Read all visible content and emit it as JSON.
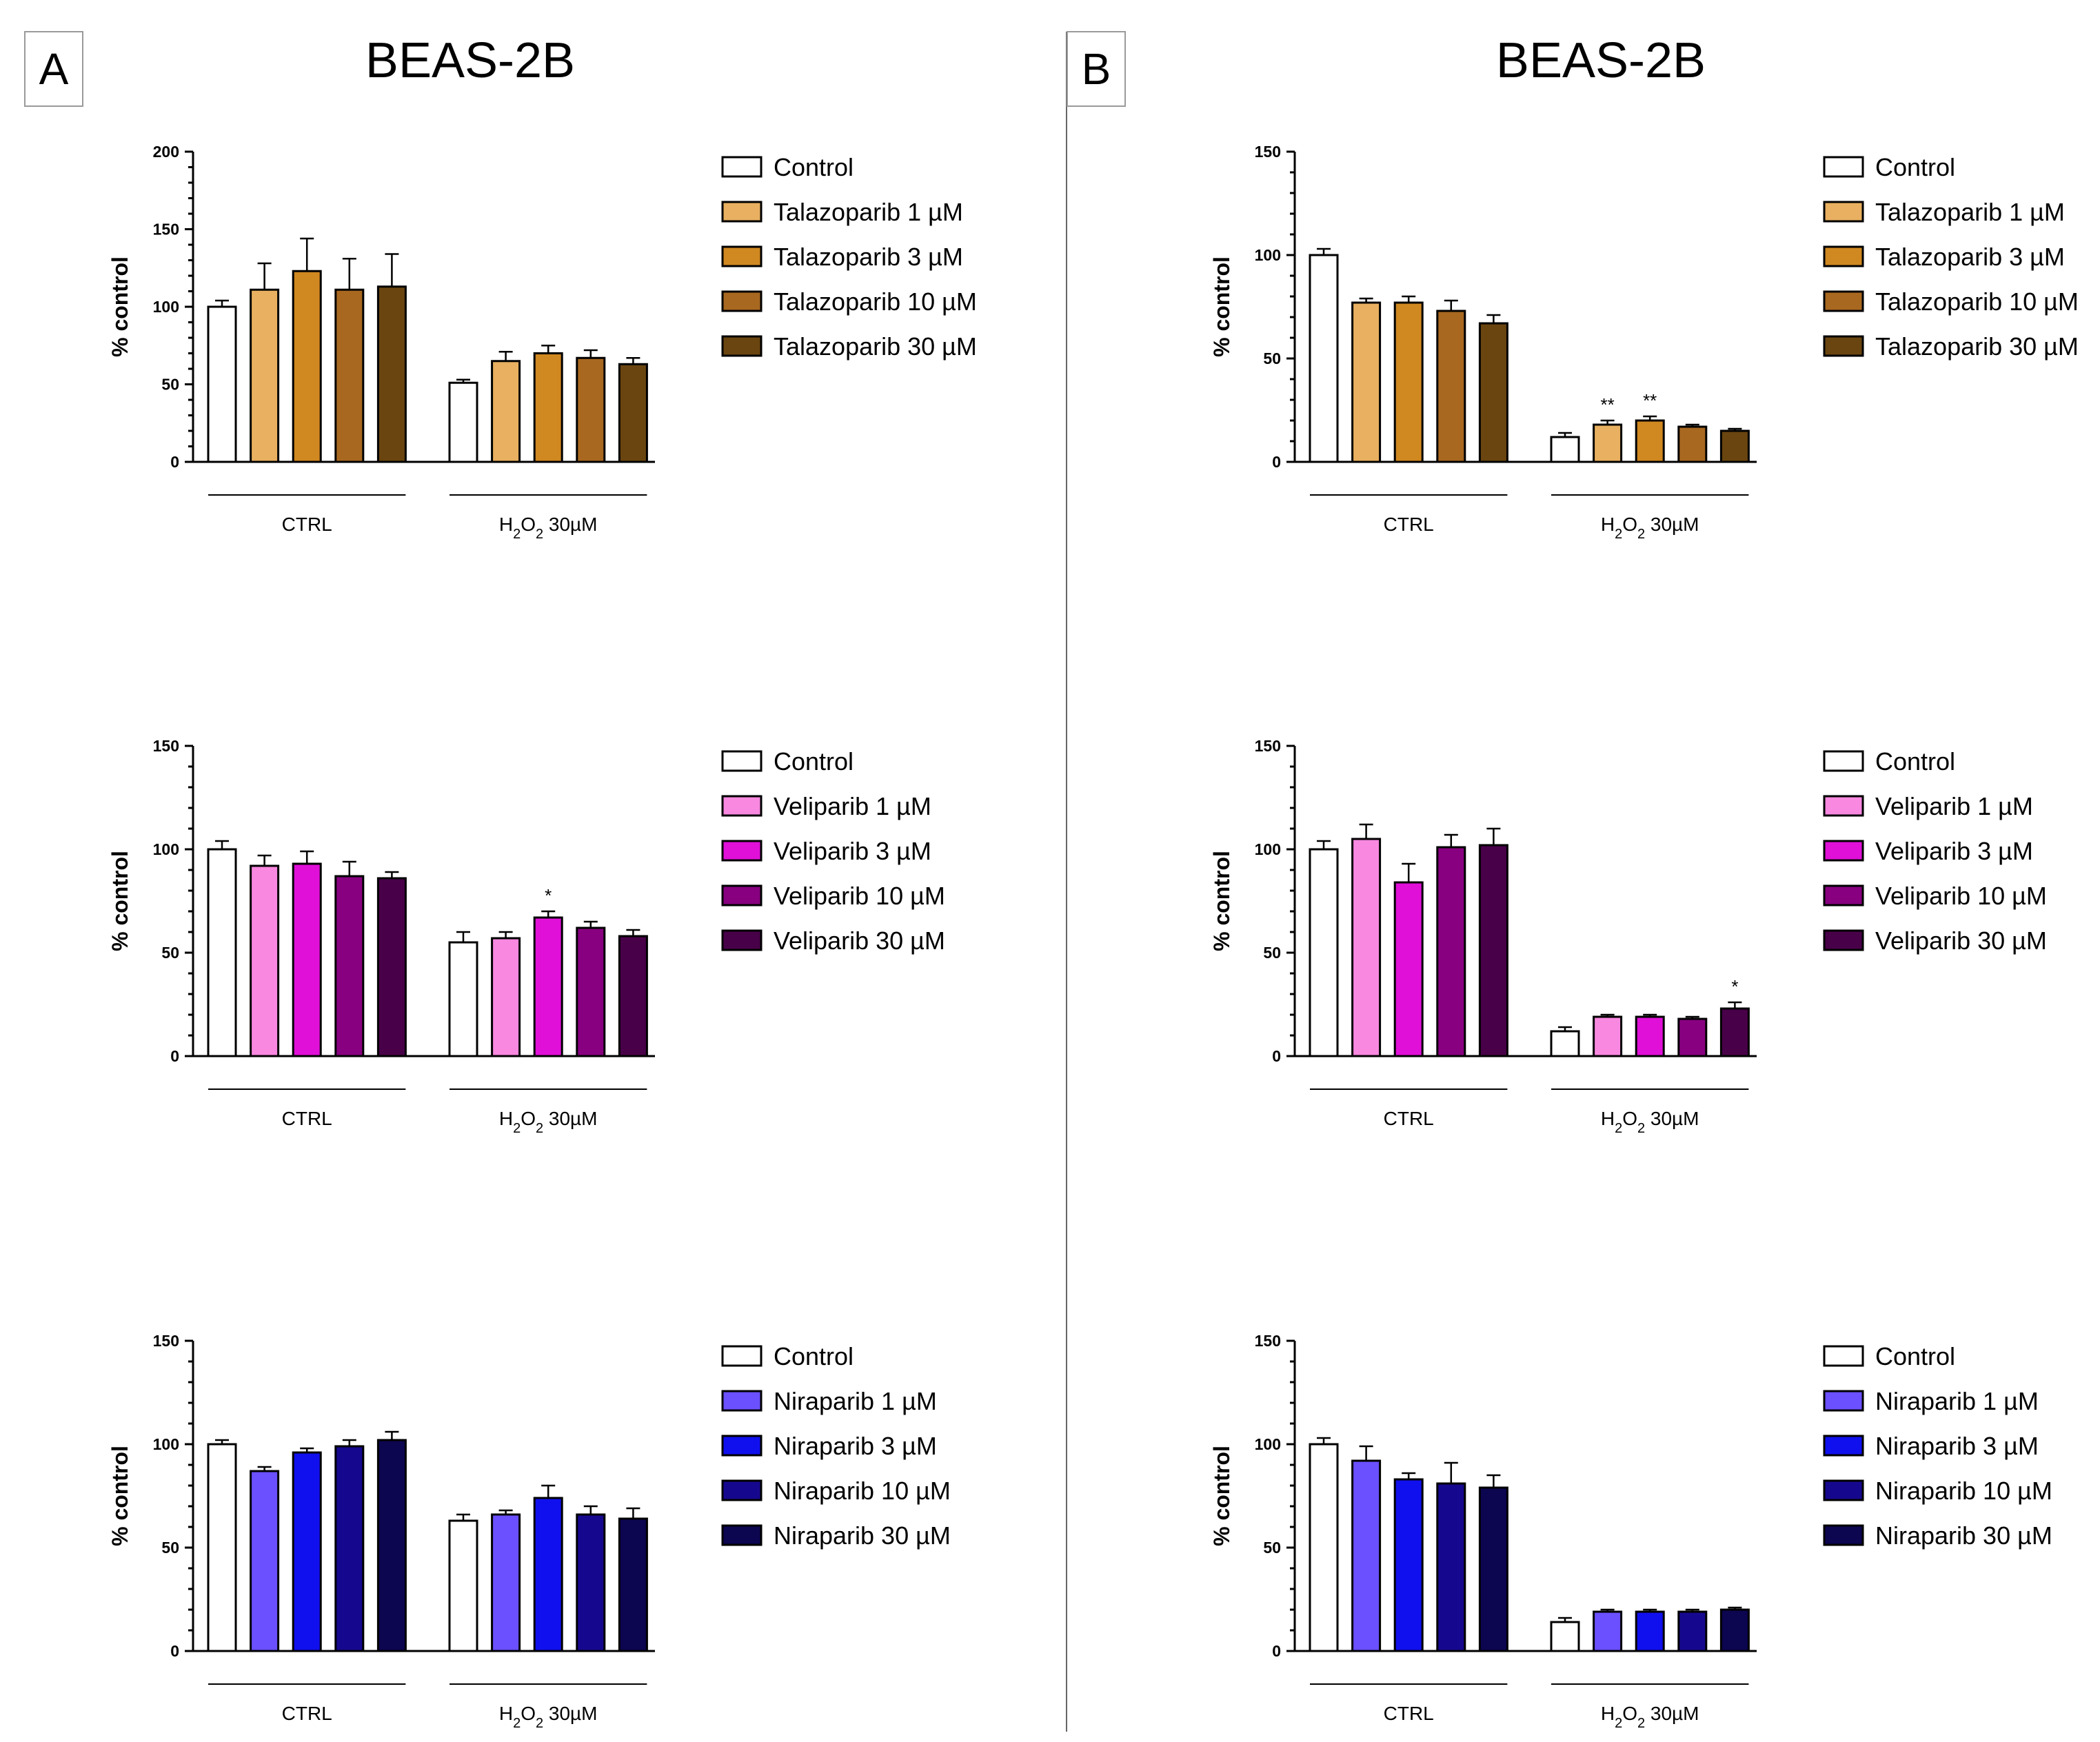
{
  "panels": [
    {
      "letter": "A",
      "title": "BEAS-2B"
    },
    {
      "letter": "B",
      "title": "BEAS-2B"
    }
  ],
  "chart_data": [
    {
      "type": "bar",
      "panel": "A",
      "row": 1,
      "ylabel": "% control",
      "ylim": [
        0,
        200
      ],
      "yticks": [
        0,
        50,
        100,
        150,
        200
      ],
      "groups": [
        "CTRL",
        "H2O2 30µM"
      ],
      "series": [
        {
          "name": "Control",
          "color": "#ffffff",
          "values": [
            100,
            51
          ],
          "errors": [
            4,
            2
          ]
        },
        {
          "name": "Talazoparib 1 µM",
          "color": "#e8b060",
          "values": [
            111,
            65
          ],
          "errors": [
            17,
            6
          ]
        },
        {
          "name": "Talazoparib 3 µM",
          "color": "#d08820",
          "values": [
            123,
            70
          ],
          "errors": [
            21,
            5
          ]
        },
        {
          "name": "Talazoparib 10 µM",
          "color": "#a86820",
          "values": [
            111,
            67
          ],
          "errors": [
            20,
            5
          ]
        },
        {
          "name": "Talazoparib 30 µM",
          "color": "#6a4510",
          "values": [
            113,
            63
          ],
          "errors": [
            21,
            4
          ]
        }
      ],
      "significance": []
    },
    {
      "type": "bar",
      "panel": "A",
      "row": 2,
      "ylabel": "% control",
      "ylim": [
        0,
        150
      ],
      "yticks": [
        0,
        50,
        100,
        150
      ],
      "groups": [
        "CTRL",
        "H2O2 30µM"
      ],
      "series": [
        {
          "name": "Control",
          "color": "#ffffff",
          "values": [
            100,
            55
          ],
          "errors": [
            4,
            5
          ]
        },
        {
          "name": "Veliparib  1 µM",
          "color": "#f888e0",
          "values": [
            92,
            57
          ],
          "errors": [
            5,
            3
          ]
        },
        {
          "name": "Veliparib  3 µM",
          "color": "#e010d8",
          "values": [
            93,
            67
          ],
          "errors": [
            6,
            3
          ]
        },
        {
          "name": "Veliparib  10 µM",
          "color": "#880080",
          "values": [
            87,
            62
          ],
          "errors": [
            7,
            3
          ]
        },
        {
          "name": "Veliparib  30 µM",
          "color": "#480048",
          "values": [
            86,
            58
          ],
          "errors": [
            3,
            3
          ]
        }
      ],
      "significance": [
        {
          "series": 2,
          "group": 1,
          "label": "*"
        }
      ]
    },
    {
      "type": "bar",
      "panel": "A",
      "row": 3,
      "ylabel": "% control",
      "ylim": [
        0,
        150
      ],
      "yticks": [
        0,
        50,
        100,
        150
      ],
      "groups": [
        "CTRL",
        "H2O2 30µM"
      ],
      "series": [
        {
          "name": "Control",
          "color": "#ffffff",
          "values": [
            100,
            63
          ],
          "errors": [
            2,
            3
          ]
        },
        {
          "name": "Niraparib 1 µM",
          "color": "#6a50ff",
          "values": [
            87,
            66
          ],
          "errors": [
            2,
            2
          ]
        },
        {
          "name": "Niraparib 3 µM",
          "color": "#1010ee",
          "values": [
            96,
            74
          ],
          "errors": [
            2,
            6
          ]
        },
        {
          "name": "Niraparib 10 µM",
          "color": "#16088e",
          "values": [
            99,
            66
          ],
          "errors": [
            3,
            4
          ]
        },
        {
          "name": "Niraparib 30 µM",
          "color": "#0c0550",
          "values": [
            102,
            64
          ],
          "errors": [
            4,
            5
          ]
        }
      ],
      "significance": []
    },
    {
      "type": "bar",
      "panel": "B",
      "row": 1,
      "ylabel": "% control",
      "ylim": [
        0,
        150
      ],
      "yticks": [
        0,
        50,
        100,
        150
      ],
      "groups": [
        "CTRL",
        "H2O2 30µM"
      ],
      "series": [
        {
          "name": "Control",
          "color": "#ffffff",
          "values": [
            100,
            12
          ],
          "errors": [
            3,
            2
          ]
        },
        {
          "name": "Talazoparib 1 µM",
          "color": "#e8b060",
          "values": [
            77,
            18
          ],
          "errors": [
            2,
            2
          ]
        },
        {
          "name": "Talazoparib 3 µM",
          "color": "#d08820",
          "values": [
            77,
            20
          ],
          "errors": [
            3,
            2
          ]
        },
        {
          "name": "Talazoparib 10 µM",
          "color": "#a86820",
          "values": [
            73,
            17
          ],
          "errors": [
            5,
            1
          ]
        },
        {
          "name": "Talazoparib 30 µM",
          "color": "#6a4510",
          "values": [
            67,
            15
          ],
          "errors": [
            4,
            1
          ]
        }
      ],
      "significance": [
        {
          "series": 1,
          "group": 1,
          "label": "**"
        },
        {
          "series": 2,
          "group": 1,
          "label": "**"
        }
      ]
    },
    {
      "type": "bar",
      "panel": "B",
      "row": 2,
      "ylabel": "% control",
      "ylim": [
        0,
        150
      ],
      "yticks": [
        0,
        50,
        100,
        150
      ],
      "groups": [
        "CTRL",
        "H2O2 30µM"
      ],
      "series": [
        {
          "name": "Control",
          "color": "#ffffff",
          "values": [
            100,
            12
          ],
          "errors": [
            4,
            2
          ]
        },
        {
          "name": "Veliparib  1 µM",
          "color": "#f888e0",
          "values": [
            105,
            19
          ],
          "errors": [
            7,
            1
          ]
        },
        {
          "name": "Veliparib  3 µM",
          "color": "#e010d8",
          "values": [
            84,
            19
          ],
          "errors": [
            9,
            1
          ]
        },
        {
          "name": "Veliparib  10 µM",
          "color": "#880080",
          "values": [
            101,
            18
          ],
          "errors": [
            6,
            1
          ]
        },
        {
          "name": "Veliparib  30 µM",
          "color": "#480048",
          "values": [
            102,
            23
          ],
          "errors": [
            8,
            3
          ]
        }
      ],
      "significance": [
        {
          "series": 4,
          "group": 1,
          "label": "*"
        }
      ]
    },
    {
      "type": "bar",
      "panel": "B",
      "row": 3,
      "ylabel": "% control",
      "ylim": [
        0,
        150
      ],
      "yticks": [
        0,
        50,
        100,
        150
      ],
      "groups": [
        "CTRL",
        "H2O2 30µM"
      ],
      "series": [
        {
          "name": "Control",
          "color": "#ffffff",
          "values": [
            100,
            14
          ],
          "errors": [
            3,
            2
          ]
        },
        {
          "name": "Niraparib 1 µM",
          "color": "#6a50ff",
          "values": [
            92,
            19
          ],
          "errors": [
            7,
            1
          ]
        },
        {
          "name": "Niraparib 3 µM",
          "color": "#1010ee",
          "values": [
            83,
            19
          ],
          "errors": [
            3,
            1
          ]
        },
        {
          "name": "Niraparib 10 µM",
          "color": "#16088e",
          "values": [
            81,
            19
          ],
          "errors": [
            10,
            1
          ]
        },
        {
          "name": "Niraparib 30 µM",
          "color": "#0c0550",
          "values": [
            79,
            20
          ],
          "errors": [
            6,
            1
          ]
        }
      ],
      "significance": []
    }
  ]
}
